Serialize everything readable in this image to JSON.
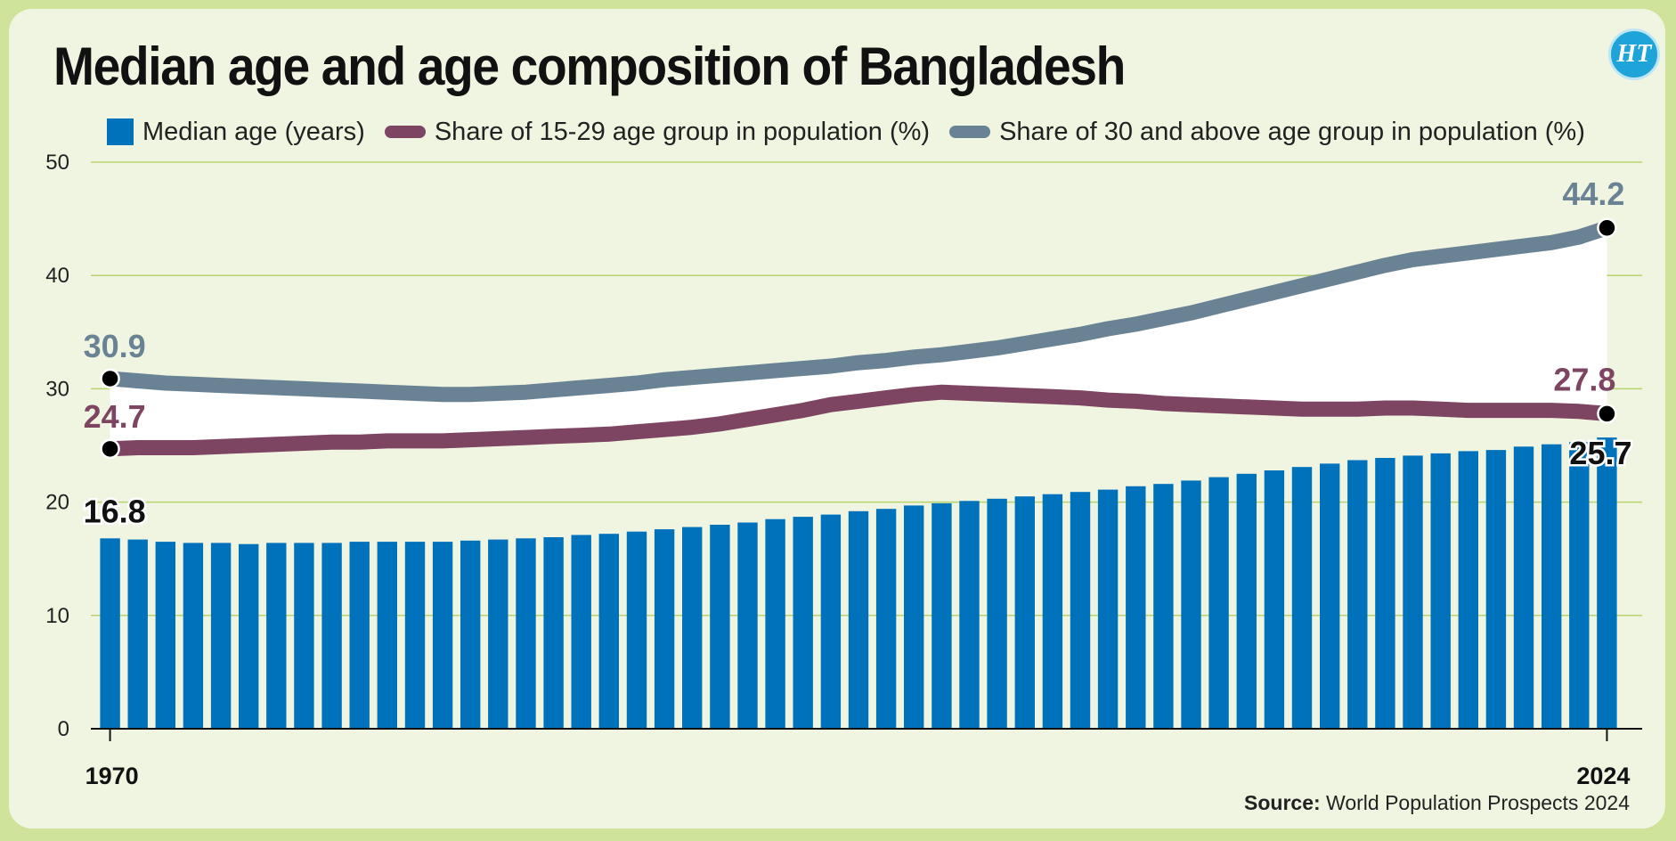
{
  "title": "Median age and age composition of Bangladesh",
  "logo_text": "HT",
  "source": {
    "label": "Source:",
    "text": "World Population Prospects 2024"
  },
  "legend": [
    {
      "label": "Median age (years)",
      "color": "#0072bc",
      "shape": "box"
    },
    {
      "label": "Share of 15-29 age group in population (%)",
      "color": "#7d4561",
      "shape": "line"
    },
    {
      "label": "Share of 30 and above age group in population (%)",
      "color": "#6a8394",
      "shape": "line"
    }
  ],
  "chart_data": {
    "type": "bar",
    "title": "Median age and age composition of Bangladesh",
    "ylim": [
      0,
      50
    ],
    "yticks": [
      0,
      10,
      20,
      30,
      40,
      50
    ],
    "x_tick_labels": [
      "1970",
      "2024"
    ],
    "grid": "horizontal",
    "legend_position": "top",
    "x": [
      1970,
      1971,
      1972,
      1973,
      1974,
      1975,
      1976,
      1977,
      1978,
      1979,
      1980,
      1981,
      1982,
      1983,
      1984,
      1985,
      1986,
      1987,
      1988,
      1989,
      1990,
      1991,
      1992,
      1993,
      1994,
      1995,
      1996,
      1997,
      1998,
      1999,
      2000,
      2001,
      2002,
      2003,
      2004,
      2005,
      2006,
      2007,
      2008,
      2009,
      2010,
      2011,
      2012,
      2013,
      2014,
      2015,
      2016,
      2017,
      2018,
      2019,
      2020,
      2021,
      2022,
      2023,
      2024
    ],
    "series": [
      {
        "name": "Median age (years)",
        "kind": "bar",
        "color": "#0072bc",
        "values": [
          16.8,
          16.7,
          16.5,
          16.4,
          16.4,
          16.3,
          16.4,
          16.4,
          16.4,
          16.5,
          16.5,
          16.5,
          16.5,
          16.6,
          16.7,
          16.8,
          16.9,
          17.1,
          17.2,
          17.4,
          17.6,
          17.8,
          18.0,
          18.2,
          18.5,
          18.7,
          18.9,
          19.2,
          19.4,
          19.7,
          19.9,
          20.1,
          20.3,
          20.5,
          20.7,
          20.9,
          21.1,
          21.4,
          21.6,
          21.9,
          22.2,
          22.5,
          22.8,
          23.1,
          23.4,
          23.7,
          23.9,
          24.1,
          24.3,
          24.5,
          24.6,
          24.9,
          25.1,
          25.3,
          25.7
        ]
      },
      {
        "name": "Share of 15-29 age group in population (%)",
        "kind": "line",
        "color": "#7d4561",
        "values": [
          24.7,
          24.8,
          24.8,
          24.8,
          24.9,
          25.0,
          25.1,
          25.2,
          25.3,
          25.3,
          25.4,
          25.4,
          25.4,
          25.5,
          25.6,
          25.7,
          25.8,
          25.9,
          26.0,
          26.2,
          26.4,
          26.6,
          26.9,
          27.3,
          27.7,
          28.1,
          28.6,
          28.9,
          29.2,
          29.5,
          29.7,
          29.6,
          29.5,
          29.4,
          29.3,
          29.2,
          29.0,
          28.9,
          28.7,
          28.6,
          28.5,
          28.4,
          28.3,
          28.2,
          28.2,
          28.2,
          28.3,
          28.3,
          28.2,
          28.1,
          28.1,
          28.1,
          28.1,
          28.0,
          27.8
        ]
      },
      {
        "name": "Share of 30 and above age group in population (%)",
        "kind": "line",
        "color": "#6a8394",
        "values": [
          30.9,
          30.7,
          30.5,
          30.4,
          30.3,
          30.2,
          30.1,
          30.0,
          29.9,
          29.8,
          29.7,
          29.6,
          29.5,
          29.5,
          29.6,
          29.7,
          29.9,
          30.1,
          30.3,
          30.5,
          30.8,
          31.0,
          31.2,
          31.4,
          31.6,
          31.8,
          32.0,
          32.3,
          32.5,
          32.8,
          33.0,
          33.3,
          33.6,
          34.0,
          34.4,
          34.8,
          35.3,
          35.7,
          36.2,
          36.7,
          37.3,
          37.9,
          38.5,
          39.1,
          39.7,
          40.3,
          40.9,
          41.4,
          41.7,
          42.0,
          42.3,
          42.6,
          42.9,
          43.4,
          44.2
        ]
      }
    ],
    "annotations": [
      {
        "series": 0,
        "at": 1970,
        "text": "16.8",
        "color": "#111111"
      },
      {
        "series": 0,
        "at": 2024,
        "text": "25.7",
        "color": "#111111"
      },
      {
        "series": 1,
        "at": 1970,
        "text": "24.7",
        "color": "#7d4561"
      },
      {
        "series": 1,
        "at": 2024,
        "text": "27.8",
        "color": "#7d4561"
      },
      {
        "series": 2,
        "at": 1970,
        "text": "30.9",
        "color": "#6a8394"
      },
      {
        "series": 2,
        "at": 2024,
        "text": "44.2",
        "color": "#6a8394"
      }
    ]
  }
}
